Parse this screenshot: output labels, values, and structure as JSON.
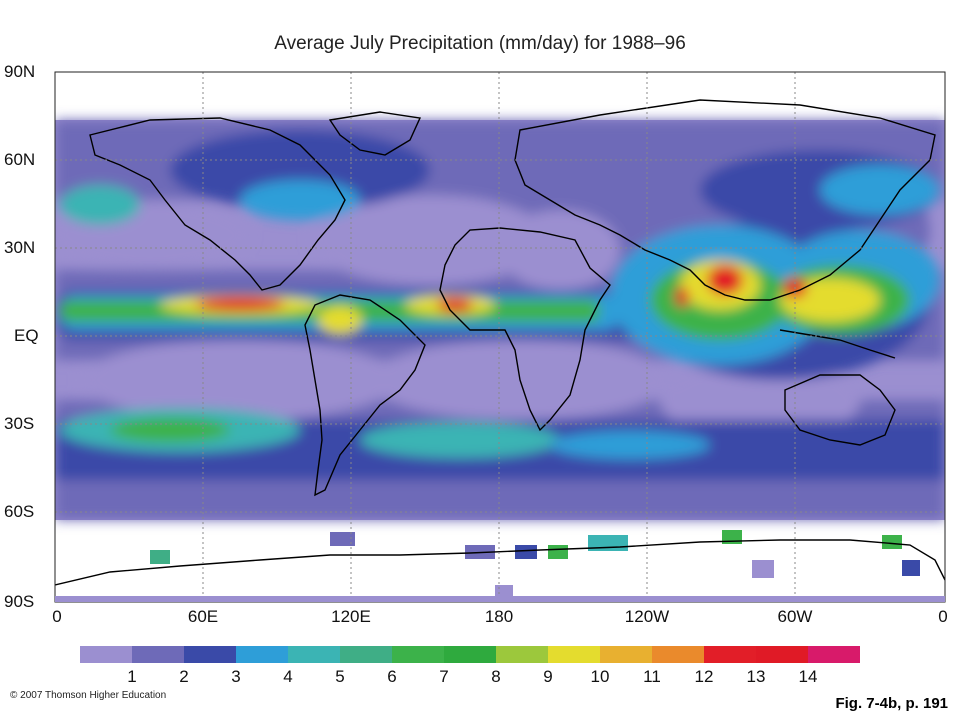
{
  "title": "Average July Precipitation (mm/day) for 1988–96",
  "lat_labels": [
    "90N",
    "60N",
    "30N",
    "EQ",
    "30S",
    "60S",
    "90S"
  ],
  "lon_labels": [
    "0",
    "60E",
    "120E",
    "180",
    "120W",
    "60W",
    "0"
  ],
  "legend": {
    "colors": [
      "#9b8fd0",
      "#6e6ab8",
      "#3a4aa8",
      "#2e9ed8",
      "#3bb4b4",
      "#3fae86",
      "#3cb24a",
      "#2faa3e",
      "#9cc83c",
      "#e4dc2e",
      "#e8b030",
      "#ea8a2c",
      "#e21e28",
      "#e01a26",
      "#d81a6a"
    ],
    "labels": [
      "1",
      "2",
      "3",
      "4",
      "5",
      "6",
      "7",
      "8",
      "9",
      "10",
      "11",
      "12",
      "13",
      "14"
    ]
  },
  "copyright": "© 2007 Thomson Higher Education",
  "figure_ref": "Fig. 7-4b, p. 191"
}
